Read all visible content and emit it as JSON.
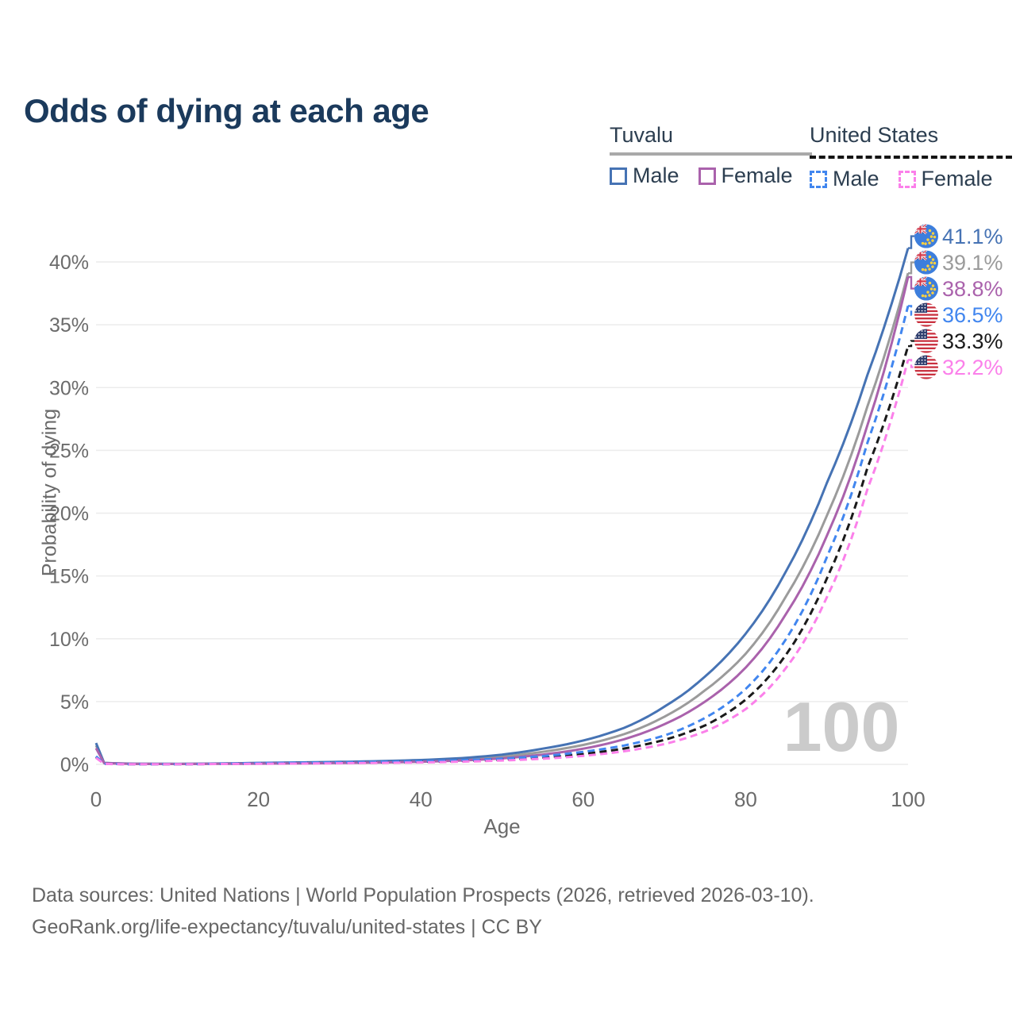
{
  "title": "Odds of dying at each age",
  "watermark": "100",
  "legend": {
    "groups": [
      {
        "name": "Tuvalu",
        "line_style": "solid",
        "underline_color": "#a9a9a9",
        "items": [
          {
            "label": "Male",
            "color": "#4673b4"
          },
          {
            "label": "Female",
            "color": "#aa62ac"
          }
        ]
      },
      {
        "name": "United States",
        "line_style": "dashed",
        "underline_color": "#141414",
        "items": [
          {
            "label": "Male",
            "color": "#4186ef"
          },
          {
            "label": "Female",
            "color": "#fb80ea"
          }
        ]
      }
    ]
  },
  "footer": {
    "line1": "Data sources: United Nations | World Population Prospects (2026, retrieved 2026-03-10).",
    "line2": "GeoRank.org/life-expectancy/tuvalu/united-states | CC BY"
  },
  "chart_data": {
    "type": "line",
    "title": "Odds of dying at each age",
    "xlabel": "Age",
    "ylabel": "Probability of dying",
    "xlim": [
      0,
      100
    ],
    "ylim": [
      0,
      42
    ],
    "x_ticks": [
      0,
      20,
      40,
      60,
      80,
      100
    ],
    "y_ticks": [
      0,
      5,
      10,
      15,
      20,
      25,
      30,
      35,
      40
    ],
    "y_tick_suffix": "%",
    "grid": "horizontal",
    "legend_position": "top-right",
    "sample_ages": [
      0,
      1,
      5,
      10,
      15,
      20,
      25,
      30,
      35,
      40,
      45,
      50,
      55,
      60,
      65,
      70,
      75,
      80,
      85,
      90,
      95,
      100
    ],
    "series": [
      {
        "name": "Tuvalu (both sexes)",
        "country": "Tuvalu",
        "sex": "Both",
        "color": "#9b9b9b",
        "dash": "none",
        "flag": "tuvalu",
        "end_value": 39.1,
        "end_label": "39.1%",
        "values_pct": [
          1.5,
          0.11,
          0.045,
          0.035,
          0.055,
          0.09,
          0.12,
          0.15,
          0.2,
          0.28,
          0.4,
          0.62,
          1.0,
          1.55,
          2.4,
          3.8,
          5.9,
          8.8,
          13.4,
          19.8,
          28.5,
          39.1
        ]
      },
      {
        "name": "Tuvalu Male",
        "country": "Tuvalu",
        "sex": "Male",
        "color": "#4673b4",
        "dash": "none",
        "flag": "tuvalu",
        "end_value": 41.1,
        "end_label": "41.1%",
        "values_pct": [
          1.7,
          0.12,
          0.05,
          0.04,
          0.07,
          0.12,
          0.16,
          0.2,
          0.26,
          0.35,
          0.5,
          0.78,
          1.25,
          1.9,
          2.9,
          4.6,
          7.0,
          10.4,
          15.4,
          22.4,
          31.0,
          41.1
        ]
      },
      {
        "name": "Tuvalu Female",
        "country": "Tuvalu",
        "sex": "Female",
        "color": "#aa62ac",
        "dash": "none",
        "flag": "tuvalu",
        "end_value": 38.8,
        "end_label": "38.8%",
        "values_pct": [
          1.28,
          0.1,
          0.04,
          0.03,
          0.045,
          0.06,
          0.08,
          0.11,
          0.15,
          0.21,
          0.31,
          0.48,
          0.78,
          1.25,
          2.0,
          3.2,
          5.0,
          7.7,
          12.0,
          18.2,
          27.0,
          38.8
        ]
      },
      {
        "name": "United States (both sexes)",
        "country": "United States",
        "sex": "Both",
        "color": "#1a1a1a",
        "dash": "dashed",
        "flag": "us",
        "end_value": 33.3,
        "end_label": "33.3%",
        "values_pct": [
          0.58,
          0.04,
          0.013,
          0.011,
          0.04,
          0.075,
          0.1,
          0.125,
          0.16,
          0.2,
          0.27,
          0.38,
          0.55,
          0.83,
          1.26,
          1.95,
          3.1,
          5.15,
          8.75,
          14.8,
          23.6,
          33.3
        ]
      },
      {
        "name": "United States Male",
        "country": "United States",
        "sex": "Male",
        "color": "#4186ef",
        "dash": "dashed",
        "flag": "us",
        "end_value": 36.5,
        "end_label": "36.5%",
        "values_pct": [
          0.64,
          0.045,
          0.015,
          0.012,
          0.05,
          0.1,
          0.13,
          0.16,
          0.2,
          0.25,
          0.33,
          0.46,
          0.66,
          1.0,
          1.5,
          2.3,
          3.7,
          6.0,
          10.0,
          16.5,
          25.6,
          36.5
        ]
      },
      {
        "name": "United States Female",
        "country": "United States",
        "sex": "Female",
        "color": "#fb80ea",
        "dash": "dashed",
        "flag": "us",
        "end_value": 32.2,
        "end_label": "32.2%",
        "values_pct": [
          0.52,
          0.035,
          0.012,
          0.01,
          0.03,
          0.05,
          0.065,
          0.09,
          0.12,
          0.155,
          0.215,
          0.31,
          0.45,
          0.68,
          1.04,
          1.62,
          2.62,
          4.4,
          7.7,
          13.3,
          21.9,
          32.2
        ]
      }
    ]
  }
}
